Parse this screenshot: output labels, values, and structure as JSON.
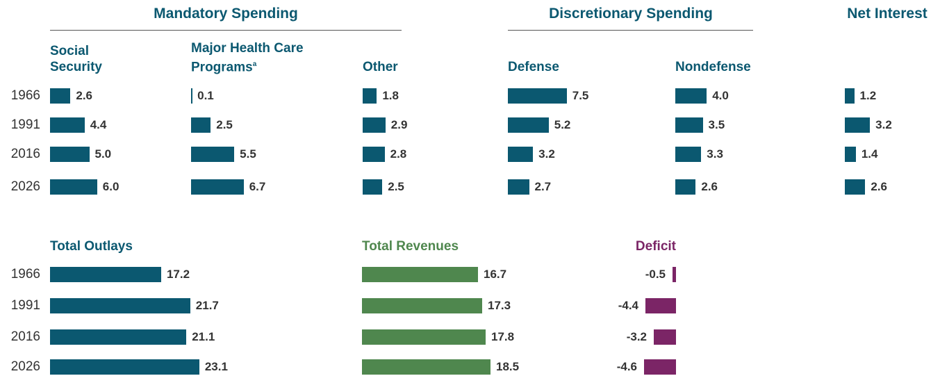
{
  "groups": [
    {
      "title": "Mandatory Spending"
    },
    {
      "title": "Discretionary Spending"
    },
    {
      "title": "Net Interest"
    }
  ],
  "categories": [
    "1966",
    "1991",
    "2016",
    "2026"
  ],
  "chart_data": [
    {
      "type": "bar",
      "title": "Social Security",
      "values": [
        2.6,
        4.4,
        5.0,
        6.0
      ],
      "value_labels": [
        "2.6",
        "4.4",
        "5.0",
        "6.0"
      ],
      "color": "#0b5870"
    },
    {
      "type": "bar",
      "title": "Major Health Care Programs",
      "title_note": "a",
      "values": [
        0.1,
        2.5,
        5.5,
        6.7
      ],
      "value_labels": [
        "0.1",
        "2.5",
        "5.5",
        "6.7"
      ],
      "color": "#0b5870"
    },
    {
      "type": "bar",
      "title": "Other",
      "values": [
        1.8,
        2.9,
        2.8,
        2.5
      ],
      "value_labels": [
        "1.8",
        "2.9",
        "2.8",
        "2.5"
      ],
      "color": "#0b5870"
    },
    {
      "type": "bar",
      "title": "Defense",
      "values": [
        7.5,
        5.2,
        3.2,
        2.7
      ],
      "value_labels": [
        "7.5",
        "5.2",
        "3.2",
        "2.7"
      ],
      "color": "#0b5870"
    },
    {
      "type": "bar",
      "title": "Nondefense",
      "values": [
        4.0,
        3.5,
        3.3,
        2.6
      ],
      "value_labels": [
        "4.0",
        "3.5",
        "3.3",
        "2.6"
      ],
      "color": "#0b5870"
    },
    {
      "type": "bar",
      "values": [
        1.2,
        3.2,
        1.4,
        2.6
      ],
      "value_labels": [
        "1.2",
        "3.2",
        "1.4",
        "2.6"
      ],
      "color": "#0b5870"
    },
    {
      "type": "bar",
      "title": "Total Outlays",
      "values": [
        17.2,
        21.7,
        21.1,
        23.1
      ],
      "value_labels": [
        "17.2",
        "21.7",
        "21.1",
        "23.1"
      ],
      "color": "#0b5870"
    },
    {
      "type": "bar",
      "title": "Total Revenues",
      "values": [
        16.7,
        17.3,
        17.8,
        18.5
      ],
      "value_labels": [
        "16.7",
        "17.3",
        "17.8",
        "18.5"
      ],
      "color": "#4f874e"
    },
    {
      "type": "bar",
      "title": "Deficit",
      "values": [
        -0.5,
        -4.4,
        -3.2,
        -4.6
      ],
      "value_labels": [
        "-0.5",
        "-4.4",
        "-3.2",
        "-4.6"
      ],
      "color": "#7b2566"
    }
  ]
}
